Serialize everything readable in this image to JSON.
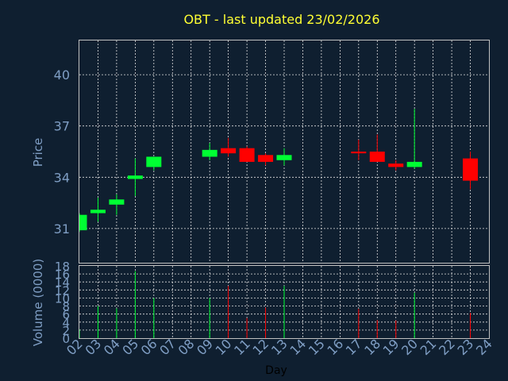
{
  "title": "OBT - last updated 23/02/2026",
  "colors": {
    "background": "#0f1f30",
    "up": "#00ff33",
    "down": "#ff0000",
    "title": "#ffff33",
    "axis_text": "#7f9ec4",
    "grid": "#e0e0e0"
  },
  "chart_data": [
    {
      "type": "candlestick",
      "ylabel": "Price",
      "ylim": [
        29.0,
        42.0
      ],
      "yticks": [
        31,
        34,
        37,
        40
      ],
      "xlim": [
        2,
        24
      ],
      "grid": true,
      "candles": [
        {
          "day": 2,
          "open": 30.9,
          "high": 31.9,
          "low": 30.8,
          "close": 31.8
        },
        {
          "day": 3,
          "open": 31.9,
          "high": 32.8,
          "low": 31.4,
          "close": 32.1
        },
        {
          "day": 4,
          "open": 32.4,
          "high": 33.0,
          "low": 31.8,
          "close": 32.7
        },
        {
          "day": 5,
          "open": 33.9,
          "high": 35.1,
          "low": 32.9,
          "close": 34.1
        },
        {
          "day": 6,
          "open": 34.6,
          "high": 35.2,
          "low": 34.4,
          "close": 35.2
        },
        {
          "day": 9,
          "open": 35.2,
          "high": 36.0,
          "low": 35.0,
          "close": 35.6
        },
        {
          "day": 10,
          "open": 35.7,
          "high": 36.3,
          "low": 35.2,
          "close": 35.4
        },
        {
          "day": 11,
          "open": 35.7,
          "high": 35.8,
          "low": 34.9,
          "close": 34.9
        },
        {
          "day": 12,
          "open": 35.3,
          "high": 35.4,
          "low": 34.7,
          "close": 34.9
        },
        {
          "day": 13,
          "open": 35.0,
          "high": 35.7,
          "low": 34.7,
          "close": 35.3
        },
        {
          "day": 17,
          "open": 35.5,
          "high": 36.2,
          "low": 35.0,
          "close": 35.4
        },
        {
          "day": 18,
          "open": 35.5,
          "high": 36.5,
          "low": 34.9,
          "close": 34.9
        },
        {
          "day": 19,
          "open": 34.8,
          "high": 35.0,
          "low": 34.4,
          "close": 34.6
        },
        {
          "day": 20,
          "open": 34.6,
          "high": 38.0,
          "low": 34.5,
          "close": 34.9
        },
        {
          "day": 23,
          "open": 35.1,
          "high": 35.5,
          "low": 33.3,
          "close": 33.8
        }
      ]
    },
    {
      "type": "bar",
      "ylabel": "Volume (0000)",
      "xlabel": "Day",
      "ylim": [
        0,
        18
      ],
      "yticks": [
        0,
        2,
        4,
        6,
        8,
        10,
        12,
        14,
        16,
        18
      ],
      "xticks": [
        "02",
        "03",
        "04",
        "05",
        "06",
        "07",
        "08",
        "09",
        "10",
        "11",
        "12",
        "13",
        "14",
        "15",
        "16",
        "17",
        "18",
        "19",
        "20",
        "21",
        "22",
        "23",
        "24"
      ],
      "grid": true,
      "bars": [
        {
          "day": 2,
          "value": 2.2,
          "dir": "up"
        },
        {
          "day": 3,
          "value": 8.0,
          "dir": "up"
        },
        {
          "day": 4,
          "value": 7.4,
          "dir": "up"
        },
        {
          "day": 5,
          "value": 16.7,
          "dir": "up"
        },
        {
          "day": 6,
          "value": 10.0,
          "dir": "up"
        },
        {
          "day": 9,
          "value": 10.0,
          "dir": "up"
        },
        {
          "day": 10,
          "value": 13.0,
          "dir": "down"
        },
        {
          "day": 11,
          "value": 5.0,
          "dir": "down"
        },
        {
          "day": 12,
          "value": 7.6,
          "dir": "down"
        },
        {
          "day": 13,
          "value": 13.0,
          "dir": "up"
        },
        {
          "day": 17,
          "value": 7.3,
          "dir": "down"
        },
        {
          "day": 18,
          "value": 4.5,
          "dir": "down"
        },
        {
          "day": 19,
          "value": 4.4,
          "dir": "down"
        },
        {
          "day": 20,
          "value": 11.3,
          "dir": "up"
        },
        {
          "day": 23,
          "value": 6.3,
          "dir": "down"
        }
      ]
    }
  ]
}
